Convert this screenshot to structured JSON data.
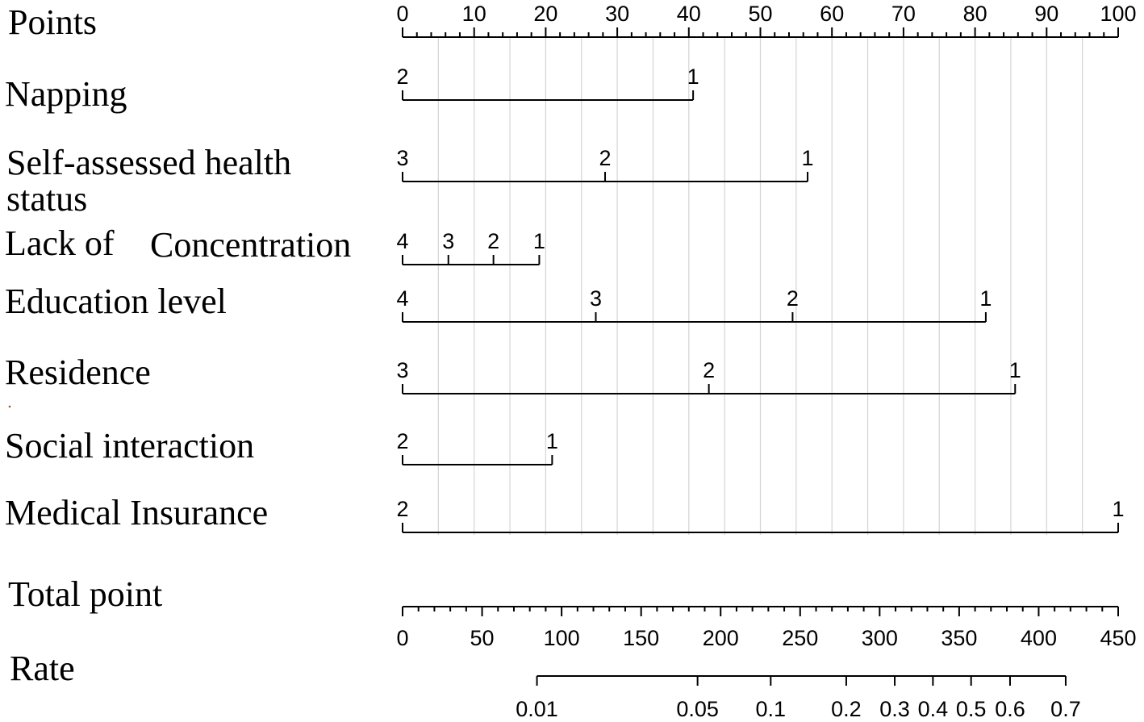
{
  "chart_data": {
    "type": "nomogram",
    "points_axis": {
      "label": "Points",
      "range": [
        0,
        100
      ],
      "ticks": [
        0,
        10,
        20,
        30,
        40,
        50,
        60,
        70,
        80,
        90,
        100
      ]
    },
    "variables": [
      {
        "name": "Napping",
        "levels": [
          {
            "label": "2",
            "points": 0
          },
          {
            "label": "1",
            "points": 40.6
          }
        ]
      },
      {
        "name_lines": [
          "Self-assessed health",
          "status"
        ],
        "levels": [
          {
            "label": "3",
            "points": 0
          },
          {
            "label": "2",
            "points": 28.3
          },
          {
            "label": "1",
            "points": 56.6
          }
        ]
      },
      {
        "name_parts": [
          "Lack of",
          "Concentration"
        ],
        "levels": [
          {
            "label": "4",
            "points": 0
          },
          {
            "label": "3",
            "points": 6.4
          },
          {
            "label": "2",
            "points": 12.7
          },
          {
            "label": "1",
            "points": 19.1
          }
        ]
      },
      {
        "name": "Education level",
        "levels": [
          {
            "label": "4",
            "points": 0
          },
          {
            "label": "3",
            "points": 27.0
          },
          {
            "label": "2",
            "points": 54.5
          },
          {
            "label": "1",
            "points": 81.5
          }
        ]
      },
      {
        "name": "Residence",
        "levels": [
          {
            "label": "3",
            "points": 0
          },
          {
            "label": "2",
            "points": 42.8
          },
          {
            "label": "1",
            "points": 85.6
          }
        ]
      },
      {
        "name": "Social interaction",
        "levels": [
          {
            "label": "2",
            "points": 0
          },
          {
            "label": "1",
            "points": 20.9
          }
        ]
      },
      {
        "name": "Medical Insurance",
        "levels": [
          {
            "label": "2",
            "points": 0
          },
          {
            "label": "1",
            "points": 100
          }
        ]
      }
    ],
    "total_points_axis": {
      "label": "Total point",
      "range": [
        0,
        450
      ],
      "ticks": [
        0,
        50,
        100,
        150,
        200,
        250,
        300,
        350,
        400,
        450
      ]
    },
    "rate_axis": {
      "label": "Rate",
      "ticks": [
        {
          "label": "0.01",
          "total_points": 84.5
        },
        {
          "label": "0.05",
          "total_points": 185.5
        },
        {
          "label": "0.1",
          "total_points": 231.5
        },
        {
          "label": "0.2",
          "total_points": 279
        },
        {
          "label": "0.3",
          "total_points": 309.5
        },
        {
          "label": "0.4",
          "total_points": 333.5
        },
        {
          "label": "0.5",
          "total_points": 357.5
        },
        {
          "label": "0.6",
          "total_points": 382
        },
        {
          "label": "0.7",
          "total_points": 417
        }
      ]
    },
    "grid": true,
    "stray_mark_color": "#c0392b"
  }
}
